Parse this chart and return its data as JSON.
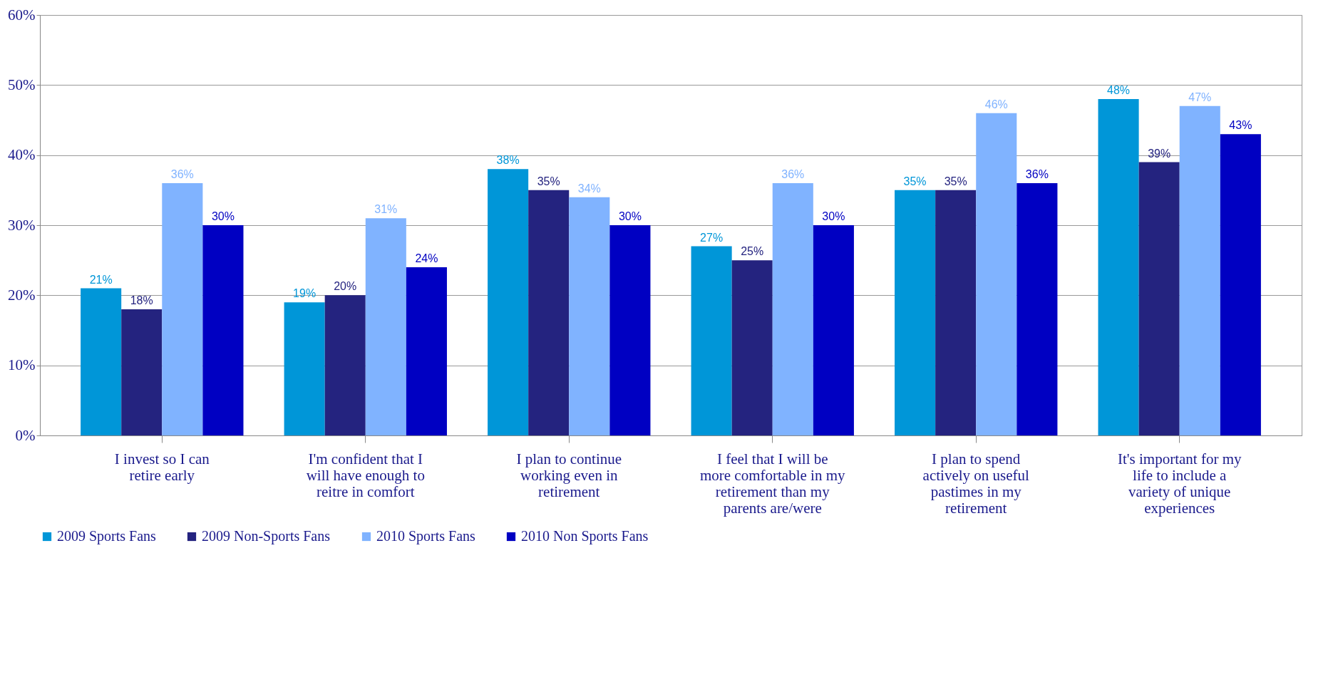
{
  "chart_data": {
    "type": "bar",
    "categories": [
      "I invest so I can retire early",
      "I'm confident that I will have enough to reitre in comfort",
      "I plan to continue working even in retirement",
      "I feel that I will be more comfortable in my retirement than my parents are/were",
      "I plan to spend actively on useful pastimes in my retirement",
      "It's important for my life to include a variety of unique experiences"
    ],
    "series": [
      {
        "name": "2009 Sports Fans",
        "color": "#0096d8",
        "values": [
          21,
          19,
          38,
          27,
          35,
          48
        ],
        "value_labels": [
          "21%",
          "19%",
          "38%",
          "27%",
          "35%",
          "48%"
        ]
      },
      {
        "name": "2009 Non-Sports Fans",
        "color": "#24237f",
        "values": [
          18,
          20,
          35,
          25,
          35,
          39
        ],
        "value_labels": [
          "18%",
          "20%",
          "35%",
          "25%",
          "35%",
          "39%"
        ]
      },
      {
        "name": "2010 Sports Fans",
        "color": "#80b3ff",
        "values": [
          36,
          31,
          34,
          36,
          46,
          47
        ],
        "value_labels": [
          "36%",
          "31%",
          "34%",
          "36%",
          "46%",
          "47%"
        ]
      },
      {
        "name": "2010 Non Sports Fans",
        "color": "#0000c2",
        "values": [
          30,
          24,
          30,
          30,
          36,
          43
        ],
        "value_labels": [
          "30%",
          "24%",
          "30%",
          "30%",
          "36%",
          "43%"
        ]
      }
    ],
    "ylim": [
      0,
      60
    ],
    "yticks": [
      {
        "value": 0,
        "label": "0%"
      },
      {
        "value": 10,
        "label": "10%"
      },
      {
        "value": 20,
        "label": "20%"
      },
      {
        "value": 30,
        "label": "30%"
      },
      {
        "value": 40,
        "label": "40%"
      },
      {
        "value": 50,
        "label": "50%"
      },
      {
        "value": 60,
        "label": "60%"
      }
    ],
    "grid": "y",
    "legend": "bottom"
  }
}
